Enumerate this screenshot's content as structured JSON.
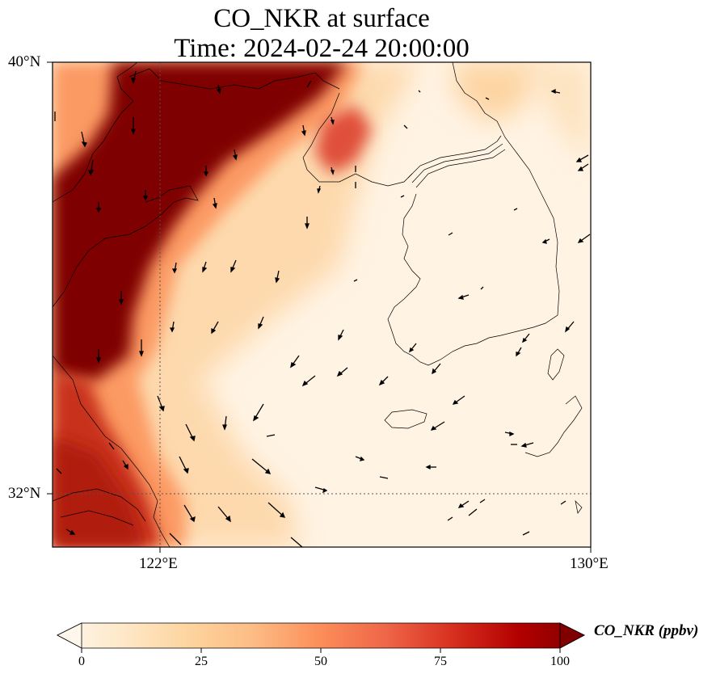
{
  "title": {
    "line1": "CO_NKR at surface",
    "line2": "Time: 2024-02-24 20:00:00"
  },
  "axes": {
    "lat_labels": [
      "40°N",
      "32°N"
    ],
    "lon_labels": [
      "122°E",
      "130°E"
    ]
  },
  "colorbar": {
    "label": "CO_NKR (ppbv)",
    "ticks": [
      "0",
      "25",
      "50",
      "75",
      "100"
    ],
    "range": [
      0,
      100
    ],
    "extend": "both",
    "colormap": "OrRd",
    "stops": [
      "#fff7ec",
      "#fee8c8",
      "#fdd49e",
      "#fdbb84",
      "#fc8d59",
      "#ef6548",
      "#d7301f",
      "#b30000",
      "#7f0000"
    ]
  },
  "map": {
    "lon_range": [
      120,
      130
    ],
    "lat_range": [
      31,
      40
    ],
    "gridlines": {
      "lon": [
        122
      ],
      "lat": [
        32
      ],
      "style": "dotted"
    }
  }
}
